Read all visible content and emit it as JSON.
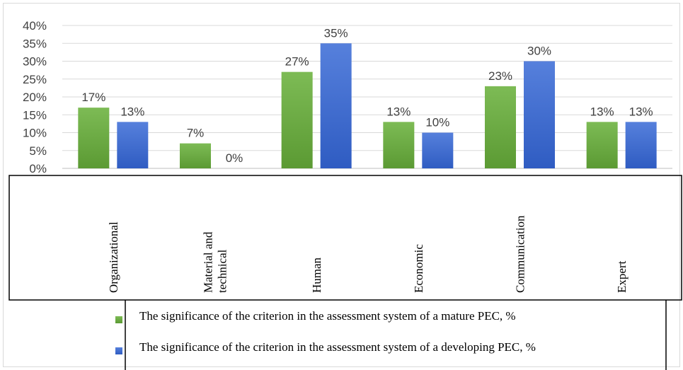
{
  "chart_data": {
    "type": "bar",
    "categories": [
      [
        "Organizational"
      ],
      [
        "Material and",
        "technical"
      ],
      [
        "Human"
      ],
      [
        "Economic"
      ],
      [
        "Communication"
      ],
      [
        "Expert"
      ]
    ],
    "series": [
      {
        "name": "The significance of the criterion in the assessment system of a mature PEC, %",
        "values": [
          17,
          7,
          27,
          13,
          23,
          13
        ],
        "labels": [
          "17%",
          "7%",
          "27%",
          "13%",
          "23%",
          "13%"
        ],
        "color": "#6aaa3f"
      },
      {
        "name": "The significance of the criterion in the assessment system of a developing PEC, %",
        "values": [
          13,
          0,
          35,
          10,
          30,
          13
        ],
        "labels": [
          "13%",
          "0%",
          "35%",
          "10%",
          "30%",
          "13%"
        ],
        "color": "#3f6fd0"
      }
    ],
    "yticks": [
      "0%",
      "5%",
      "10%",
      "15%",
      "20%",
      "25%",
      "30%",
      "35%",
      "40%"
    ],
    "ylim": [
      0,
      40
    ],
    "grid": true,
    "legend": "bottom"
  }
}
